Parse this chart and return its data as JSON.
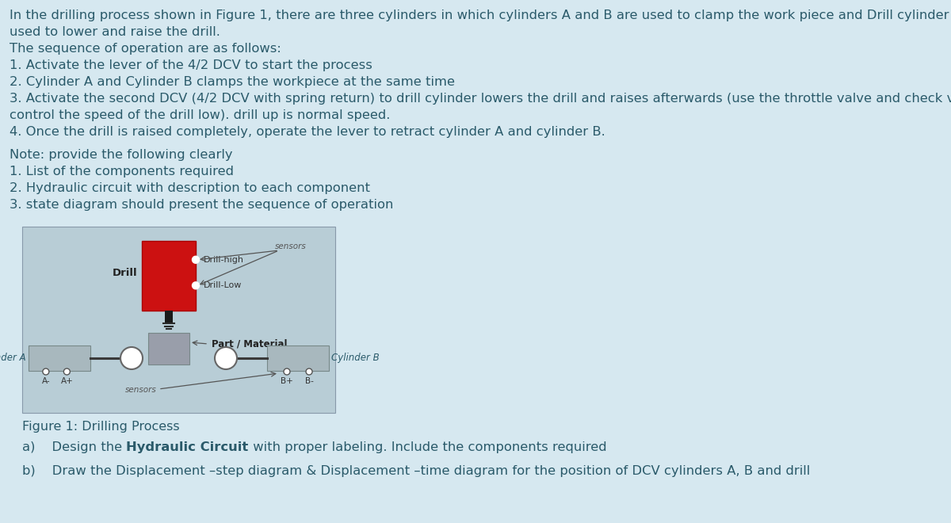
{
  "bg_color": "#d6e8f0",
  "text_color": "#2a5a6a",
  "title_lines": [
    "In the drilling process shown in Figure 1, there are three cylinders in which cylinders A and B are used to clamp the work piece and Drill cylinder is",
    "used to lower and raise the drill.",
    "The sequence of operation are as follows:",
    "1. Activate the lever of the 4/2 DCV to start the process",
    "2. Cylinder A and Cylinder B clamps the workpiece at the same time",
    "3. Activate the second DCV (4/2 DCV with spring return) to drill cylinder lowers the drill and raises afterwards (use the throttle valve and check valve to",
    "control the speed of the drill low). drill up is normal speed.",
    "4. Once the drill is raised completely, operate the lever to retract cylinder A and cylinder B."
  ],
  "note_lines": [
    "Note: provide the following clearly",
    "1. List of the components required",
    "2. Hydraulic circuit with description to each component",
    "3. state diagram should present the sequence of operation"
  ],
  "figure_caption": "Figure 1: Drilling Process",
  "question_b": "b)    Draw the Displacement –step diagram & Displacement –time diagram for the position of DCV cylinders A, B and drill",
  "fig_bg": "#b8cdd6",
  "drill_red": "#cc1111",
  "cylinder_gray": "#a8b8be",
  "part_gray": "#999eaa",
  "rod_black": "#1a1a1a"
}
